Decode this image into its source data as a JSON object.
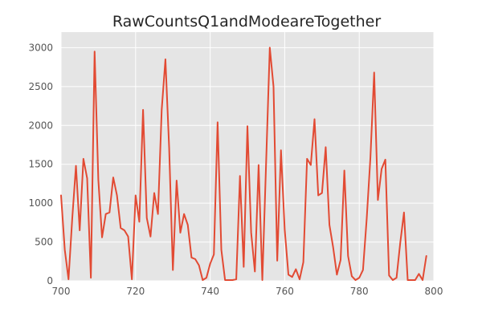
{
  "chart_data": {
    "type": "line",
    "title": "RawCountsQ1andModeareTogether",
    "xlabel": "",
    "ylabel": "",
    "xlim": [
      700,
      800
    ],
    "ylim": [
      0,
      3200
    ],
    "x_ticks": [
      700,
      720,
      740,
      760,
      780,
      800
    ],
    "y_ticks": [
      0,
      500,
      1000,
      1500,
      2000,
      2500,
      3000
    ],
    "grid": true,
    "legend": "none",
    "series": [
      {
        "color": "#e24a33",
        "x": [
          700,
          701,
          702,
          703,
          704,
          705,
          706,
          707,
          708,
          709,
          710,
          711,
          712,
          713,
          714,
          715,
          716,
          717,
          718,
          719,
          720,
          721,
          722,
          723,
          724,
          725,
          726,
          727,
          728,
          729,
          730,
          731,
          732,
          733,
          734,
          735,
          736,
          737,
          738,
          739,
          740,
          741,
          742,
          743,
          744,
          745,
          746,
          747,
          748,
          749,
          750,
          751,
          752,
          753,
          754,
          755,
          756,
          757,
          758,
          759,
          760,
          761,
          762,
          763,
          764,
          765,
          766,
          767,
          768,
          769,
          770,
          771,
          772,
          773,
          774,
          775,
          776,
          777,
          778,
          779,
          780,
          781,
          782,
          783,
          784,
          785,
          786,
          787,
          788,
          789,
          790,
          791,
          792,
          793,
          794,
          795,
          796,
          797,
          798
        ],
        "y": [
          1100,
          400,
          20,
          800,
          1480,
          650,
          1570,
          1320,
          40,
          2950,
          1300,
          560,
          860,
          880,
          1330,
          1100,
          680,
          650,
          570,
          20,
          1100,
          760,
          2200,
          810,
          570,
          1130,
          860,
          2200,
          2850,
          1710,
          140,
          1290,
          620,
          860,
          720,
          300,
          280,
          200,
          10,
          40,
          220,
          340,
          2040,
          400,
          10,
          10,
          10,
          20,
          1350,
          180,
          1990,
          620,
          120,
          1490,
          10,
          1500,
          3000,
          2500,
          260,
          1680,
          660,
          80,
          50,
          150,
          20,
          240,
          1570,
          1490,
          2080,
          1100,
          1130,
          1720,
          720,
          430,
          80,
          270,
          1420,
          320,
          60,
          10,
          40,
          140,
          800,
          1590,
          2680,
          1040,
          1440,
          1560,
          70,
          10,
          40,
          490,
          880,
          10,
          10,
          10,
          90,
          10,
          320
        ]
      }
    ]
  }
}
